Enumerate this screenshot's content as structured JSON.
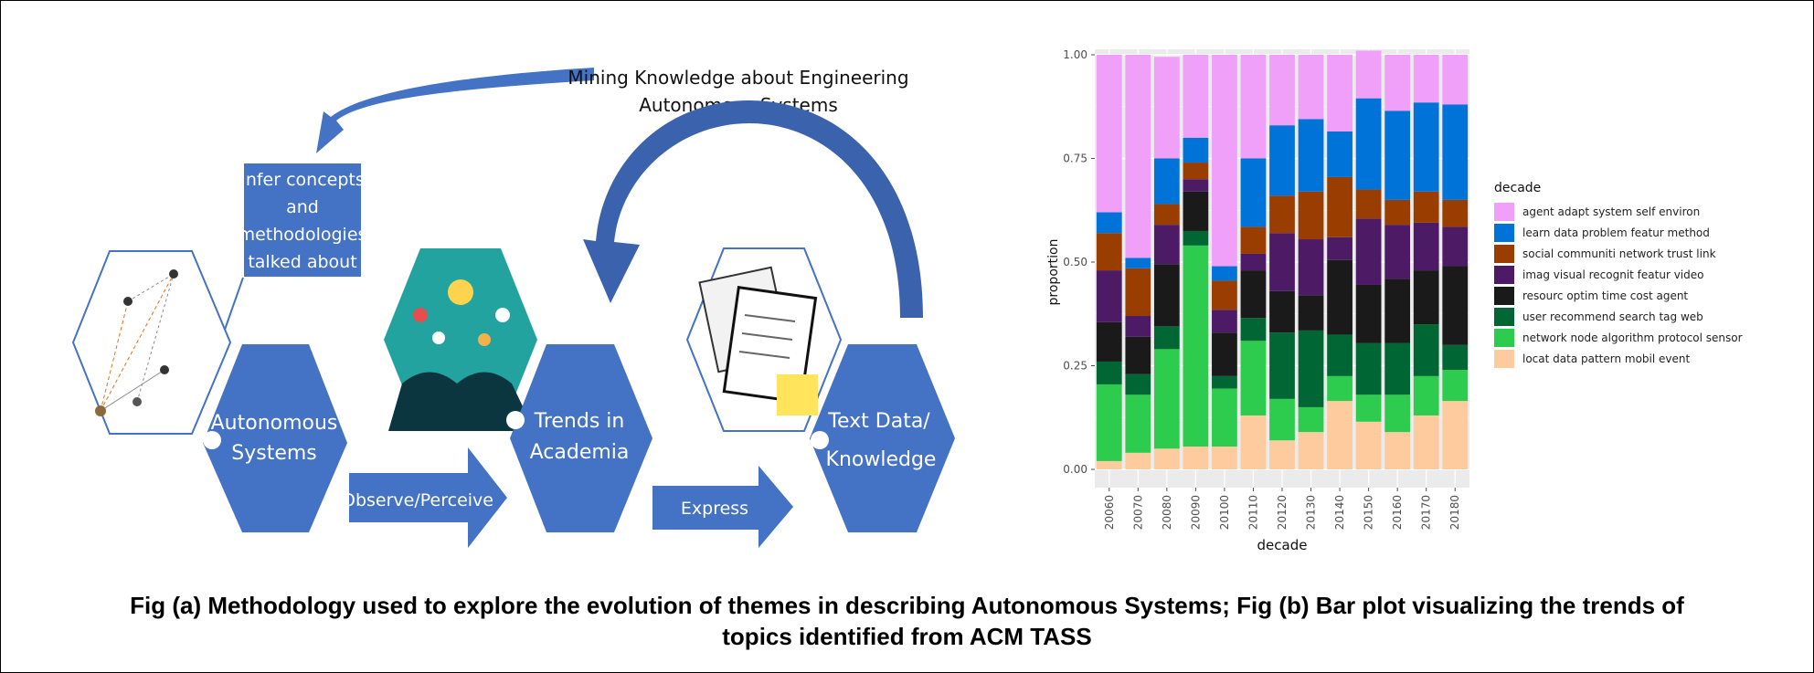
{
  "diagram": {
    "top_label_line1": "Mining Knowledge about Engineering",
    "top_label_line2": "Autonomous Systems",
    "infer_line1": "Infer concepts",
    "infer_line2": "and",
    "infer_line3": "methodologies",
    "infer_line4": "talked about",
    "hex1_line1": "Autonomous",
    "hex1_line2": "Systems",
    "hex2_line1": "Trends in",
    "hex2_line2": "Academia",
    "hex3_line1": "Text Data/",
    "hex3_line2": "Knowledge",
    "arrow1_label": "Observe/Perceive",
    "arrow2_label": "Express",
    "colors": {
      "hex_blue": "#4472c4",
      "arrow_dark": "#3a62ad"
    }
  },
  "chart_data": {
    "type": "bar",
    "stacked": true,
    "xlabel": "decade",
    "ylabel": "proportion",
    "ylim": [
      0,
      1
    ],
    "yticks": [
      "0.00",
      "0.25",
      "0.50",
      "0.75",
      "1.00"
    ],
    "categories": [
      "20060",
      "20070",
      "20080",
      "20090",
      "20100",
      "20110",
      "20120",
      "20130",
      "20140",
      "20150",
      "20160",
      "20170",
      "20180"
    ],
    "legend_title": "decade",
    "legend_position": "right",
    "grid": true,
    "series": [
      {
        "name": "locat data pattern mobil event",
        "color": "#fdcb9e",
        "values": [
          0.02,
          0.04,
          0.05,
          0.055,
          0.055,
          0.13,
          0.07,
          0.09,
          0.165,
          0.115,
          0.09,
          0.13,
          0.165
        ]
      },
      {
        "name": "network node algorithm protocol sensor",
        "color": "#2ecc4e",
        "values": [
          0.185,
          0.14,
          0.24,
          0.485,
          0.14,
          0.18,
          0.1,
          0.06,
          0.06,
          0.065,
          0.09,
          0.095,
          0.075
        ]
      },
      {
        "name": "user recommend search tag web",
        "color": "#006633",
        "values": [
          0.055,
          0.05,
          0.055,
          0.035,
          0.03,
          0.055,
          0.16,
          0.185,
          0.1,
          0.125,
          0.125,
          0.125,
          0.06
        ]
      },
      {
        "name": "resourc optim time cost agent",
        "color": "#1a1a1a",
        "values": [
          0.095,
          0.09,
          0.15,
          0.095,
          0.105,
          0.115,
          0.1,
          0.085,
          0.18,
          0.14,
          0.155,
          0.13,
          0.19
        ]
      },
      {
        "name": "imag visual recognit featur video",
        "color": "#4d1a66",
        "values": [
          0.125,
          0.05,
          0.095,
          0.03,
          0.055,
          0.04,
          0.14,
          0.135,
          0.055,
          0.16,
          0.13,
          0.115,
          0.095
        ]
      },
      {
        "name": "social communiti network trust link",
        "color": "#993d00",
        "values": [
          0.09,
          0.115,
          0.05,
          0.04,
          0.07,
          0.065,
          0.09,
          0.115,
          0.145,
          0.07,
          0.06,
          0.075,
          0.065
        ]
      },
      {
        "name": "learn data problem featur method",
        "color": "#0073d9",
        "values": [
          0.05,
          0.025,
          0.11,
          0.06,
          0.035,
          0.165,
          0.17,
          0.175,
          0.11,
          0.22,
          0.215,
          0.215,
          0.23
        ]
      },
      {
        "name": "agent adapt system self environ",
        "color": "#f0a0f8",
        "values": [
          0.38,
          0.49,
          0.245,
          0.2,
          0.51,
          0.25,
          0.17,
          0.155,
          0.185,
          0.115,
          0.135,
          0.115,
          0.12
        ]
      }
    ]
  },
  "caption": {
    "line1": "Fig (a) Methodology used to explore the evolution of themes in describing Autonomous Systems; Fig (b) Bar plot visualizing the trends of",
    "line2": "topics identified from ACM TASS"
  }
}
